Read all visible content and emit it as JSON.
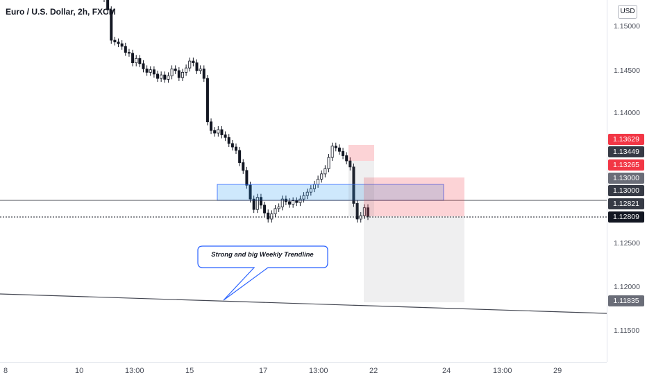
{
  "chart": {
    "symbol_title": "Euro / U.S. Dollar, 2h, FXCM",
    "currency_button": "USD",
    "price_ticks": [
      "1.15000",
      "1.14500",
      "1.14000",
      "1.12500",
      "1.12000",
      "1.11500"
    ],
    "price_tags": [
      {
        "label": "1.13629",
        "color": "#f23645"
      },
      {
        "label": "1.13449",
        "color": "#363a45"
      },
      {
        "label": "1.13265",
        "color": "#f23645"
      },
      {
        "label": "1.13000",
        "color": "#6a6d78"
      },
      {
        "label": "1.13000",
        "color": "#363a45"
      },
      {
        "label": "1.12821",
        "color": "#363a45"
      },
      {
        "label": "1.12809",
        "color": "#131722"
      },
      {
        "label": "1.11835",
        "color": "#6a6d78"
      }
    ],
    "time_labels": [
      "8",
      "10",
      "13:00",
      "15",
      "17",
      "13:00",
      "22",
      "24",
      "13:00",
      "29"
    ],
    "annotation": "Strong and big Weekly Trendline"
  },
  "chart_data": {
    "type": "candlestick",
    "title": "Euro / U.S. Dollar, 2h, FXCM",
    "y_axis_unit": "USD",
    "ylim": [
      1.1105,
      1.1535
    ],
    "grid": false,
    "close_series": [
      1.1532,
      1.1519,
      1.1484,
      1.1482,
      1.148,
      1.1477,
      1.147,
      1.1469,
      1.1458,
      1.1463,
      1.1457,
      1.1451,
      1.1447,
      1.145,
      1.1445,
      1.144,
      1.1444,
      1.1439,
      1.1443,
      1.1451,
      1.1449,
      1.1441,
      1.1447,
      1.1452,
      1.146,
      1.1458,
      1.1449,
      1.1451,
      1.144,
      1.139,
      1.138,
      1.1377,
      1.1381,
      1.1375,
      1.1372,
      1.1365,
      1.1361,
      1.1357,
      1.1343,
      1.1334,
      1.1317,
      1.1301,
      1.1289,
      1.1303,
      1.1294,
      1.1285,
      1.1278,
      1.1284,
      1.129,
      1.1292,
      1.1301,
      1.1298,
      1.1295,
      1.1299,
      1.1297,
      1.1301,
      1.1305,
      1.1309,
      1.1313,
      1.1318,
      1.1324,
      1.133,
      1.1336,
      1.1349,
      1.1362,
      1.136,
      1.1356,
      1.1351,
      1.1345,
      1.1338,
      1.1296,
      1.1278,
      1.1282,
      1.1291,
      1.1281
    ],
    "levels": {
      "current": 1.12809,
      "horizontal_line": 1.12821,
      "zone_high": 1.13,
      "zone_low": 1.12821,
      "stop": 1.13265,
      "trendline_at_axis": 1.11835
    },
    "annotations": [
      "Strong and big Weekly Trendline"
    ]
  }
}
